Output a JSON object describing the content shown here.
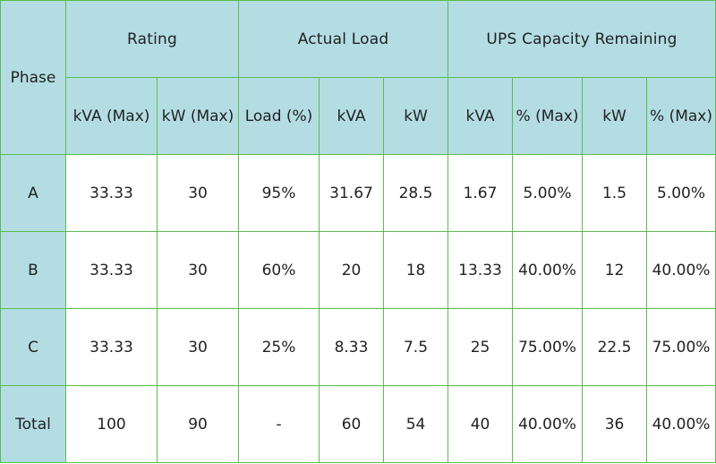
{
  "table": {
    "phase_header": "Phase",
    "groups": {
      "rating": "Rating",
      "actual_load": "Actual Load",
      "ups_capacity_remaining": "UPS Capacity Remaining"
    },
    "subheaders": [
      "kVA (Max)",
      "kW (Max)",
      "Load (%)",
      "kVA",
      "kW",
      "kVA",
      "% (Max)",
      "kW",
      "% (Max)"
    ],
    "rows": [
      {
        "phase": "A",
        "cells": [
          "33.33",
          "30",
          "95%",
          "31.67",
          "28.5",
          "1.67",
          "5.00%",
          "1.5",
          "5.00%"
        ]
      },
      {
        "phase": "B",
        "cells": [
          "33.33",
          "30",
          "60%",
          "20",
          "18",
          "13.33",
          "40.00%",
          "12",
          "40.00%"
        ]
      },
      {
        "phase": "C",
        "cells": [
          "33.33",
          "30",
          "25%",
          "8.33",
          "7.5",
          "25",
          "75.00%",
          "22.5",
          "75.00%"
        ]
      },
      {
        "phase": "Total",
        "cells": [
          "100",
          "90",
          "-",
          "60",
          "54",
          "40",
          "40.00%",
          "36",
          "40.00%"
        ]
      }
    ],
    "colors": {
      "header_bg": "#b3dde3",
      "border": "#5dbb4f",
      "text": "#222222"
    }
  }
}
